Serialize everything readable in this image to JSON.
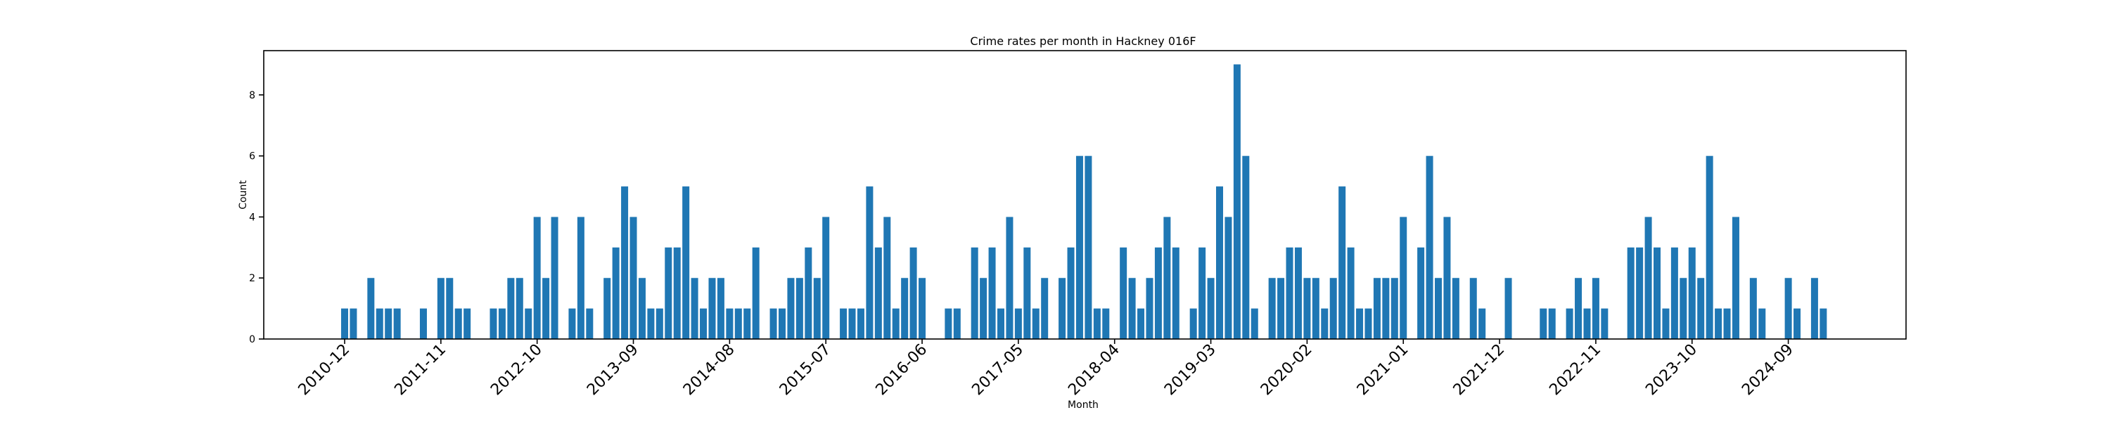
{
  "chart_data": {
    "type": "bar",
    "title": "Crime rates per month in Hackney 016F",
    "xlabel": "Month",
    "ylabel": "Count",
    "ylim": [
      0,
      9.45
    ],
    "yticks": [
      0,
      2,
      4,
      6,
      8
    ],
    "bar_color": "#1f77b4",
    "xtick_labels": [
      "2010-12",
      "2011-11",
      "2012-10",
      "2013-09",
      "2014-08",
      "2015-07",
      "2016-06",
      "2017-05",
      "2018-04",
      "2019-03",
      "2020-02",
      "2021-01",
      "2021-12",
      "2022-11",
      "2023-10",
      "2024-09"
    ],
    "categories": [
      "2010-12",
      "2011-01",
      "2011-02",
      "2011-03",
      "2011-04",
      "2011-05",
      "2011-06",
      "2011-07",
      "2011-08",
      "2011-09",
      "2011-10",
      "2011-11",
      "2011-12",
      "2012-01",
      "2012-02",
      "2012-03",
      "2012-04",
      "2012-05",
      "2012-06",
      "2012-07",
      "2012-08",
      "2012-09",
      "2012-10",
      "2012-11",
      "2012-12",
      "2013-01",
      "2013-02",
      "2013-03",
      "2013-04",
      "2013-05",
      "2013-06",
      "2013-07",
      "2013-08",
      "2013-09",
      "2013-10",
      "2013-11",
      "2013-12",
      "2014-01",
      "2014-02",
      "2014-03",
      "2014-04",
      "2014-05",
      "2014-06",
      "2014-07",
      "2014-08",
      "2014-09",
      "2014-10",
      "2014-11",
      "2014-12",
      "2015-01",
      "2015-02",
      "2015-03",
      "2015-04",
      "2015-05",
      "2015-06",
      "2015-07",
      "2015-08",
      "2015-09",
      "2015-10",
      "2015-11",
      "2015-12",
      "2016-01",
      "2016-02",
      "2016-03",
      "2016-04",
      "2016-05",
      "2016-06",
      "2016-07",
      "2016-08",
      "2016-09",
      "2016-10",
      "2016-11",
      "2016-12",
      "2017-01",
      "2017-02",
      "2017-03",
      "2017-04",
      "2017-05",
      "2017-06",
      "2017-07",
      "2017-08",
      "2017-09",
      "2017-10",
      "2017-11",
      "2017-12",
      "2018-01",
      "2018-02",
      "2018-03",
      "2018-04",
      "2018-05",
      "2018-06",
      "2018-07",
      "2018-08",
      "2018-09",
      "2018-10",
      "2018-11",
      "2018-12",
      "2019-01",
      "2019-02",
      "2019-03",
      "2019-04",
      "2019-05",
      "2019-06",
      "2019-07",
      "2019-08",
      "2019-09",
      "2019-10",
      "2019-11",
      "2019-12",
      "2020-01",
      "2020-02",
      "2020-03",
      "2020-04",
      "2020-05",
      "2020-06",
      "2020-07",
      "2020-08",
      "2020-09",
      "2020-10",
      "2020-11",
      "2020-12",
      "2021-01",
      "2021-02",
      "2021-03",
      "2021-04",
      "2021-05",
      "2021-06",
      "2021-07",
      "2021-08",
      "2021-09",
      "2021-10",
      "2021-11",
      "2021-12",
      "2022-01",
      "2022-02",
      "2022-03",
      "2022-04",
      "2022-05",
      "2022-06",
      "2022-07",
      "2022-08",
      "2022-09",
      "2022-10",
      "2022-11",
      "2022-12",
      "2023-01",
      "2023-02",
      "2023-03",
      "2023-04",
      "2023-05",
      "2023-06",
      "2023-07",
      "2023-08",
      "2023-09",
      "2023-10",
      "2023-11",
      "2023-12",
      "2024-01",
      "2024-02",
      "2024-03",
      "2024-04",
      "2024-05",
      "2024-06",
      "2024-07",
      "2024-08",
      "2024-09",
      "2024-10",
      "2024-11",
      "2024-12",
      "2025-01",
      "2025-02",
      "2025-03",
      "2025-04"
    ],
    "values": [
      1,
      1,
      0,
      2,
      1,
      1,
      1,
      0,
      0,
      1,
      0,
      2,
      2,
      1,
      1,
      0,
      0,
      1,
      1,
      2,
      2,
      1,
      4,
      2,
      4,
      0,
      1,
      4,
      1,
      0,
      2,
      3,
      5,
      4,
      2,
      1,
      1,
      3,
      3,
      5,
      2,
      1,
      2,
      2,
      1,
      1,
      1,
      3,
      0,
      1,
      1,
      2,
      2,
      3,
      2,
      4,
      0,
      1,
      1,
      1,
      5,
      3,
      4,
      1,
      2,
      3,
      2,
      0,
      0,
      1,
      1,
      0,
      3,
      2,
      3,
      1,
      4,
      1,
      3,
      1,
      2,
      0,
      2,
      3,
      6,
      6,
      1,
      1,
      0,
      3,
      2,
      1,
      2,
      3,
      4,
      3,
      0,
      1,
      3,
      2,
      5,
      4,
      9,
      6,
      1,
      0,
      2,
      2,
      3,
      3,
      2,
      2,
      1,
      2,
      5,
      3,
      1,
      1,
      2,
      2,
      2,
      4,
      0,
      3,
      6,
      2,
      4,
      2,
      0,
      2,
      1,
      0,
      0,
      2,
      0,
      0,
      0,
      1,
      1,
      0,
      1,
      2,
      1,
      2,
      1,
      0,
      0,
      3,
      3,
      4,
      3,
      1,
      3,
      2,
      3,
      2,
      6,
      1,
      1,
      4,
      0,
      2,
      1,
      0,
      0,
      2,
      1,
      0,
      2,
      1,
      0,
      0,
      0
    ]
  }
}
